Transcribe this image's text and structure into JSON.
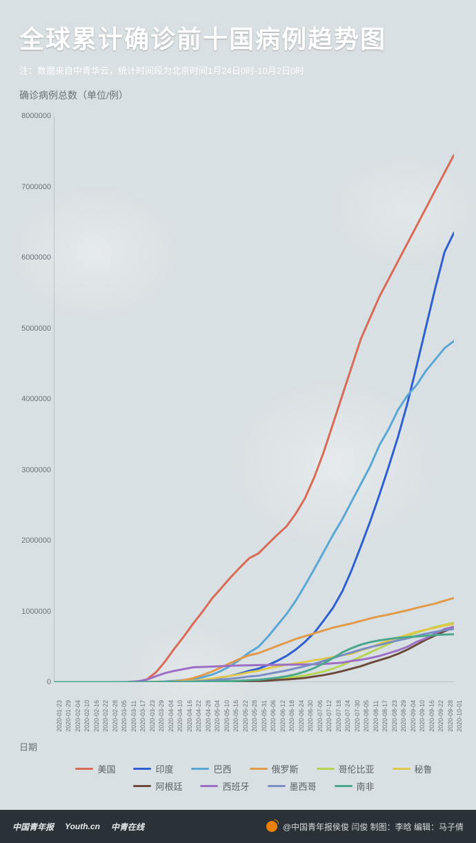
{
  "page_bg": "#d9e0e3",
  "header": {
    "title": "全球累计确诊前十国病例趋势图",
    "subtitle": "注：数据来自中青华云，统计时间段为北京时间1月24日0时-10月2日0时",
    "title_fontsize": 36,
    "title_color": "#ffffff",
    "subtitle_fontsize": 13,
    "subtitle_color": "#ffffff"
  },
  "chart": {
    "type": "line",
    "ylabel": "确诊病例总数（单位/例）",
    "xlabel": "日期",
    "label_fontsize": 14,
    "label_color": "#6a7278",
    "background": "transparent",
    "axis_color": "#9aa3a8",
    "grid": false,
    "line_width": 3,
    "ylim": [
      0,
      8000000
    ],
    "yticks": [
      0,
      1000000,
      2000000,
      3000000,
      4000000,
      5000000,
      6000000,
      7000000,
      8000000
    ],
    "xticks": [
      "2020-01-23",
      "2020-01-29",
      "2020-02-04",
      "2020-02-10",
      "2020-02-16",
      "2020-02-22",
      "2020-02-28",
      "2020-03-05",
      "2020-03-11",
      "2020-03-17",
      "2020-03-23",
      "2020-03-29",
      "2020-04-04",
      "2020-04-10",
      "2020-04-16",
      "2020-04-22",
      "2020-04-28",
      "2020-05-04",
      "2020-05-10",
      "2020-05-16",
      "2020-05-22",
      "2020-05-28",
      "2020-05-31",
      "2020-06-06",
      "2020-06-12",
      "2020-06-18",
      "2020-06-24",
      "2020-06-30",
      "2020-07-06",
      "2020-07-12",
      "2020-07-18",
      "2020-07-24",
      "2020-07-30",
      "2020-08-05",
      "2020-08-11",
      "2020-08-17",
      "2020-08-23",
      "2020-08-29",
      "2020-09-04",
      "2020-09-10",
      "2020-09-16",
      "2020-09-22",
      "2020-09-28",
      "2020-10-01"
    ],
    "series": [
      {
        "name": "美国",
        "color": "#d96b56",
        "values": [
          0,
          0,
          0,
          0,
          0,
          0,
          0,
          50,
          500,
          5000,
          40000,
          140000,
          300000,
          480000,
          650000,
          830000,
          1000000,
          1180000,
          1330000,
          1480000,
          1620000,
          1750000,
          1820000,
          1950000,
          2080000,
          2200000,
          2380000,
          2600000,
          2900000,
          3250000,
          3650000,
          4050000,
          4450000,
          4850000,
          5150000,
          5450000,
          5700000,
          5950000,
          6200000,
          6450000,
          6700000,
          6950000,
          7200000,
          7450000
        ]
      },
      {
        "name": "印度",
        "color": "#2e5fd1",
        "values": [
          0,
          0,
          0,
          0,
          0,
          0,
          0,
          0,
          10,
          100,
          500,
          1000,
          3000,
          7000,
          13000,
          21000,
          31000,
          46000,
          67000,
          90000,
          120000,
          160000,
          190000,
          240000,
          300000,
          370000,
          460000,
          570000,
          700000,
          870000,
          1050000,
          1280000,
          1580000,
          1920000,
          2270000,
          2650000,
          3050000,
          3470000,
          3940000,
          4470000,
          5020000,
          5570000,
          6080000,
          6350000
        ]
      },
      {
        "name": "巴西",
        "color": "#5aa7d6",
        "values": [
          0,
          0,
          0,
          0,
          0,
          0,
          0,
          0,
          0,
          200,
          1500,
          4000,
          10000,
          20000,
          30000,
          45000,
          70000,
          105000,
          160000,
          230000,
          320000,
          420000,
          500000,
          640000,
          800000,
          960000,
          1150000,
          1370000,
          1600000,
          1840000,
          2080000,
          2300000,
          2550000,
          2800000,
          3050000,
          3350000,
          3580000,
          3850000,
          4050000,
          4200000,
          4400000,
          4560000,
          4720000,
          4820000
        ]
      },
      {
        "name": "俄罗斯",
        "color": "#e09a4a",
        "values": [
          0,
          0,
          0,
          0,
          0,
          0,
          0,
          0,
          5,
          100,
          500,
          1800,
          5000,
          12000,
          28000,
          58000,
          100000,
          150000,
          210000,
          270000,
          330000,
          380000,
          410000,
          460000,
          510000,
          560000,
          610000,
          650000,
          690000,
          730000,
          770000,
          800000,
          830000,
          865000,
          900000,
          930000,
          955000,
          985000,
          1015000,
          1050000,
          1080000,
          1110000,
          1150000,
          1190000
        ]
      },
      {
        "name": "哥伦比亚",
        "color": "#b6d653",
        "values": [
          0,
          0,
          0,
          0,
          0,
          0,
          0,
          0,
          0,
          50,
          300,
          800,
          1500,
          2800,
          3500,
          4500,
          6000,
          8000,
          11000,
          15000,
          20000,
          25000,
          30000,
          38000,
          48000,
          60000,
          75000,
          95000,
          120000,
          150000,
          190000,
          240000,
          300000,
          360000,
          420000,
          480000,
          540000,
          600000,
          650000,
          700000,
          740000,
          780000,
          810000,
          840000
        ]
      },
      {
        "name": "秘鲁",
        "color": "#e0c84a",
        "values": [
          0,
          0,
          0,
          0,
          0,
          0,
          0,
          0,
          0,
          80,
          400,
          1000,
          2500,
          6000,
          12000,
          20000,
          32000,
          50000,
          70000,
          90000,
          110000,
          140000,
          160000,
          195000,
          220000,
          245000,
          265000,
          285000,
          310000,
          330000,
          355000,
          380000,
          400000,
          450000,
          490000,
          540000,
          590000,
          630000,
          670000,
          710000,
          740000,
          770000,
          800000,
          820000
        ]
      },
      {
        "name": "阿根廷",
        "color": "#6b4a3a",
        "values": [
          0,
          0,
          0,
          0,
          0,
          0,
          0,
          0,
          0,
          30,
          200,
          800,
          1500,
          2000,
          2800,
          3500,
          4200,
          5000,
          6000,
          8000,
          10000,
          14000,
          17000,
          22000,
          30000,
          38000,
          48000,
          60000,
          80000,
          100000,
          125000,
          155000,
          190000,
          225000,
          270000,
          310000,
          350000,
          400000,
          460000,
          530000,
          600000,
          660000,
          720000,
          770000
        ]
      },
      {
        "name": "西班牙",
        "color": "#9c6fc4",
        "values": [
          0,
          0,
          0,
          0,
          0,
          0,
          0,
          50,
          1500,
          12000,
          35000,
          85000,
          130000,
          160000,
          185000,
          210000,
          215000,
          220000,
          225000,
          231000,
          235000,
          238000,
          240000,
          242000,
          244000,
          246000,
          248000,
          250000,
          253000,
          258000,
          265000,
          275000,
          300000,
          315000,
          340000,
          370000,
          410000,
          450000,
          500000,
          570000,
          620000,
          690000,
          750000,
          780000
        ]
      },
      {
        "name": "墨西哥",
        "color": "#7a8ec4",
        "values": [
          0,
          0,
          0,
          0,
          0,
          0,
          0,
          0,
          5,
          100,
          400,
          1200,
          2000,
          4000,
          6500,
          10000,
          16000,
          25000,
          35000,
          48000,
          62000,
          80000,
          90000,
          115000,
          140000,
          165000,
          195000,
          225000,
          260000,
          300000,
          340000,
          380000,
          420000,
          460000,
          495000,
          525000,
          560000,
          590000,
          620000,
          655000,
          685000,
          710000,
          735000,
          750000
        ]
      },
      {
        "name": "南非",
        "color": "#4aa78d",
        "values": [
          0,
          0,
          0,
          0,
          0,
          0,
          0,
          0,
          10,
          100,
          400,
          1300,
          1700,
          2200,
          2800,
          3800,
          5000,
          7500,
          10000,
          14000,
          20000,
          27000,
          33000,
          48000,
          62000,
          83000,
          110000,
          150000,
          200000,
          265000,
          340000,
          420000,
          480000,
          530000,
          565000,
          590000,
          610000,
          625000,
          635000,
          645000,
          655000,
          665000,
          672000,
          677000
        ]
      }
    ]
  },
  "legend": {
    "fontsize": 13,
    "swatch_w": 26,
    "swatch_h": 3
  },
  "footer": {
    "bg": "#2a3238",
    "color": "#e6ecef",
    "logos": [
      "中国青年报",
      "Youth.cn",
      "中青在线"
    ],
    "credits_prefix": "@中国青年报侯俊 闫俊 制图：李晗 编辑：马子倩"
  }
}
